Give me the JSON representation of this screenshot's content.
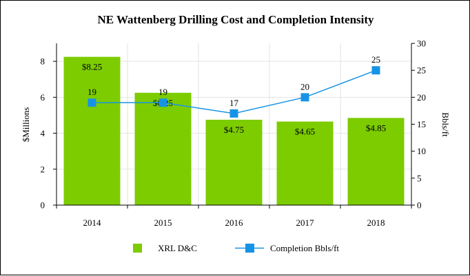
{
  "chart_data": {
    "type": "bar",
    "title": "NE Wattenberg Drilling Cost and Completion Intensity",
    "categories": [
      "2014",
      "2015",
      "2016",
      "2017",
      "2018"
    ],
    "series": [
      {
        "name": "XRL D&C",
        "type": "bar",
        "axis": "left",
        "color": "#7ccc00",
        "values": [
          8.25,
          6.25,
          4.75,
          4.65,
          4.85
        ],
        "labels": [
          "$8.25",
          "$6.25",
          "$4.75",
          "$4.65",
          "$4.85"
        ]
      },
      {
        "name": "Completion Bbls/ft",
        "type": "line",
        "axis": "right",
        "color": "#1793e6",
        "values": [
          19,
          19,
          17,
          20,
          25
        ],
        "labels": [
          "19",
          "19",
          "17",
          "20",
          "25"
        ]
      }
    ],
    "ylabel": "$Millions",
    "ylim": [
      0,
      9
    ],
    "yticks": [
      0,
      2,
      4,
      6,
      8
    ],
    "y2label": "Bbls/ft",
    "y2lim": [
      0,
      30
    ],
    "y2ticks": [
      0,
      5,
      10,
      15,
      20,
      25,
      30
    ],
    "grid": true,
    "legend": "bottom"
  }
}
